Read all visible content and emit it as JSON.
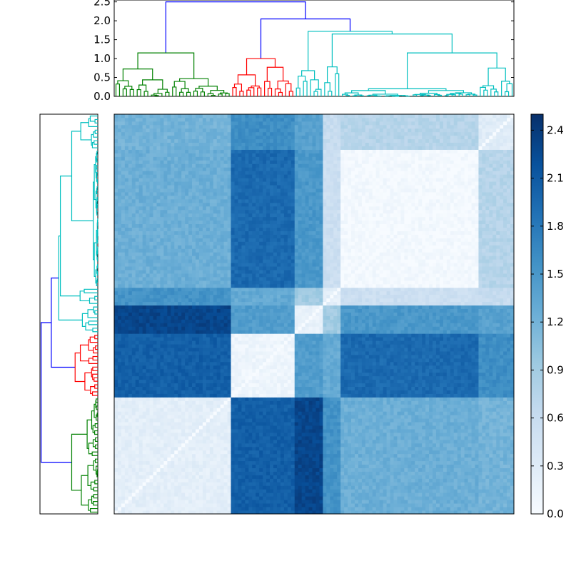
{
  "chart_data": [
    {
      "type": "dendrogram",
      "orientation": "top",
      "ylim": [
        0,
        2.55
      ],
      "yticks": [
        0.0,
        0.5,
        1.0,
        1.5,
        2.0,
        2.5
      ],
      "ytick_labels": [
        "0.0",
        "0.5",
        "1.0",
        "1.5",
        "2.0",
        "2.5"
      ],
      "n_leaves": 113,
      "clusters": [
        {
          "color": "#008000",
          "leaf_range": [
            0,
            32
          ]
        },
        {
          "color": "#ff0000",
          "leaf_range": [
            33,
            50
          ]
        },
        {
          "color": "#00bfbf",
          "leaf_range": [
            51,
            112
          ]
        }
      ],
      "link_color": "#0000ff",
      "merge_heights": {
        "green_cluster": 1.15,
        "red_cluster": 1.0,
        "cyan_cluster": 1.72,
        "red_cyan": 2.05,
        "root": 2.5
      }
    },
    {
      "type": "dendrogram",
      "orientation": "left",
      "n_leaves": 113,
      "clusters": [
        {
          "color": "#00bfbf",
          "position": "top"
        },
        {
          "color": "#ff0000",
          "position": "middle"
        },
        {
          "color": "#008000",
          "position": "bottom"
        }
      ],
      "link_color": "#0000ff"
    },
    {
      "type": "heatmap",
      "colormap": "Blues",
      "vmin": 0.0,
      "vmax": 2.5,
      "n_rows": 113,
      "n_cols": 113,
      "blocks_description": "symmetric clustered distance matrix; low values within clusters on diagonal",
      "colorbar_ticks": [
        0.0,
        0.3,
        0.6,
        0.9,
        1.2,
        1.5,
        1.8,
        2.1,
        2.4
      ],
      "colorbar_tick_labels": [
        "0.0",
        "0.3",
        "0.6",
        "0.9",
        "1.2",
        "1.5",
        "1.8",
        "2.1",
        "2.4"
      ]
    }
  ]
}
